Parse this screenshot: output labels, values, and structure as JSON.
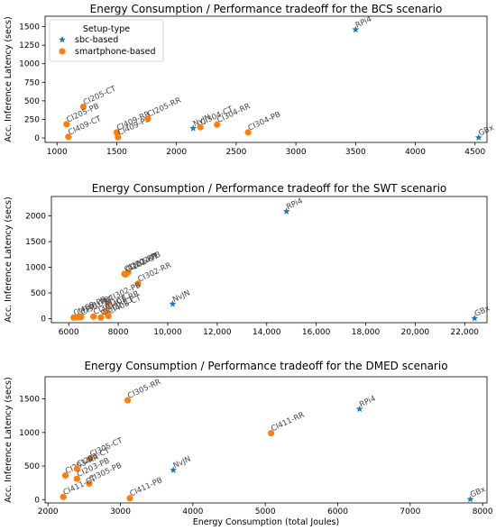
{
  "legend": {
    "title": "Setup-type",
    "items": [
      {
        "label": "sbc-based",
        "color": "#1f77b4",
        "marker": "star"
      },
      {
        "label": "smartphone-based",
        "color": "#ff7f0e",
        "marker": "circle"
      }
    ]
  },
  "chart_data": [
    {
      "type": "scatter",
      "title": "Energy Consumption / Performance tradeoff for the BCS scenario",
      "xlabel": "",
      "ylabel": "Acc. Inference Latency (secs)",
      "xlim": [
        900,
        4600
      ],
      "ylim": [
        -60,
        1640
      ],
      "xticks": [
        1000,
        1500,
        2000,
        2500,
        3000,
        3500,
        4000,
        4500
      ],
      "xtick_labels": [
        "1000",
        "1500",
        "2000",
        "2500",
        "3000",
        "3500",
        "4000",
        "4500"
      ],
      "yticks": [
        0,
        250,
        500,
        750,
        1000,
        1250,
        1500
      ],
      "ytick_labels": [
        "0",
        "250",
        "500",
        "750",
        "1000",
        "1250",
        "1500"
      ],
      "legend": true,
      "legend_position": "top-left",
      "points": [
        {
          "label": "RPi4",
          "x": 3500,
          "y": 1460,
          "type": "sbc"
        },
        {
          "label": "NvJN",
          "x": 2140,
          "y": 130,
          "type": "sbc"
        },
        {
          "label": "GBx",
          "x": 4530,
          "y": 5,
          "type": "sbc"
        },
        {
          "label": "CI205-CT",
          "x": 1220,
          "y": 420,
          "type": "smartphone"
        },
        {
          "label": "CI205-PB",
          "x": 1080,
          "y": 185,
          "type": "smartphone"
        },
        {
          "label": "CI409-CT",
          "x": 1095,
          "y": 15,
          "type": "smartphone"
        },
        {
          "label": "CI409-RR",
          "x": 1500,
          "y": 75,
          "type": "smartphone"
        },
        {
          "label": "CI409-PB",
          "x": 1510,
          "y": 10,
          "type": "smartphone"
        },
        {
          "label": "CI205-RR",
          "x": 1760,
          "y": 260,
          "type": "smartphone"
        },
        {
          "label": "CI304-CT",
          "x": 2200,
          "y": 145,
          "type": "smartphone"
        },
        {
          "label": "CI304-RR",
          "x": 2340,
          "y": 180,
          "type": "smartphone"
        },
        {
          "label": "CI304-PB",
          "x": 2600,
          "y": 75,
          "type": "smartphone"
        }
      ]
    },
    {
      "type": "scatter",
      "title": "Energy Consumption / Performance tradeoff for the SWT scenario",
      "xlabel": "",
      "ylabel": "Acc. Inference Latency (secs)",
      "xlim": [
        5300,
        22900
      ],
      "ylim": [
        -80,
        2380
      ],
      "xticks": [
        6000,
        8000,
        10000,
        12000,
        14000,
        16000,
        18000,
        20000,
        22000
      ],
      "xtick_labels": [
        "6000",
        "8000",
        "10,000",
        "12,000",
        "14,000",
        "16,000",
        "18,000",
        "20,000",
        "22,000"
      ],
      "yticks": [
        0,
        500,
        1000,
        1500,
        2000
      ],
      "ytick_labels": [
        "0",
        "500",
        "1000",
        "1500",
        "2000"
      ],
      "legend": false,
      "points": [
        {
          "label": "RPi4",
          "x": 14800,
          "y": 2090,
          "type": "sbc"
        },
        {
          "label": "NvJN",
          "x": 10200,
          "y": 285,
          "type": "sbc"
        },
        {
          "label": "GBx",
          "x": 22400,
          "y": 5,
          "type": "sbc"
        },
        {
          "label": "CI202-RR",
          "x": 8250,
          "y": 870,
          "type": "smartphone"
        },
        {
          "label": "CI202-PB",
          "x": 8400,
          "y": 900,
          "type": "smartphone"
        },
        {
          "label": "CI202-CT",
          "x": 8300,
          "y": 860,
          "type": "smartphone"
        },
        {
          "label": "CI302-RR",
          "x": 8800,
          "y": 680,
          "type": "smartphone"
        },
        {
          "label": "CI302-PB",
          "x": 7600,
          "y": 300,
          "type": "smartphone"
        },
        {
          "label": "CI408-RR",
          "x": 7500,
          "y": 130,
          "type": "smartphone"
        },
        {
          "label": "CI408-CT",
          "x": 7600,
          "y": 50,
          "type": "smartphone"
        },
        {
          "label": "CI408-PB",
          "x": 6200,
          "y": 20,
          "type": "smartphone"
        },
        {
          "label": "CI301-PB",
          "x": 6350,
          "y": 25,
          "type": "smartphone"
        },
        {
          "label": "CI301-RR",
          "x": 6500,
          "y": 30,
          "type": "smartphone"
        },
        {
          "label": "CI301-CT",
          "x": 7000,
          "y": 40,
          "type": "smartphone"
        },
        {
          "label": "CI302-CT",
          "x": 7300,
          "y": 20,
          "type": "smartphone"
        }
      ]
    },
    {
      "type": "scatter",
      "title": "Energy Consumption / Performance tradeoff for the DMED scenario",
      "xlabel": "Energy Consumption (total Joules)",
      "ylabel": "Acc. Inference Latency (secs)",
      "xlim": [
        1960,
        8060
      ],
      "ylim": [
        -50,
        1830
      ],
      "xticks": [
        2000,
        3000,
        4000,
        5000,
        6000,
        7000,
        8000
      ],
      "xtick_labels": [
        "2000",
        "3000",
        "4000",
        "5000",
        "6000",
        "7000",
        "8000"
      ],
      "yticks": [
        0,
        500,
        1000,
        1500
      ],
      "ytick_labels": [
        "0",
        "500",
        "1000",
        "1500"
      ],
      "legend": false,
      "points": [
        {
          "label": "RPi4",
          "x": 6300,
          "y": 1350,
          "type": "sbc"
        },
        {
          "label": "NvJN",
          "x": 3730,
          "y": 440,
          "type": "sbc"
        },
        {
          "label": "GBx",
          "x": 7830,
          "y": 5,
          "type": "sbc"
        },
        {
          "label": "CI305-RR",
          "x": 3100,
          "y": 1480,
          "type": "smartphone"
        },
        {
          "label": "CI411-RR",
          "x": 5080,
          "y": 990,
          "type": "smartphone"
        },
        {
          "label": "CI305-CT",
          "x": 2580,
          "y": 610,
          "type": "smartphone"
        },
        {
          "label": "CI203-RR",
          "x": 2240,
          "y": 360,
          "type": "smartphone"
        },
        {
          "label": "CI203-CT",
          "x": 2400,
          "y": 460,
          "type": "smartphone"
        },
        {
          "label": "CI203-PB",
          "x": 2400,
          "y": 310,
          "type": "smartphone"
        },
        {
          "label": "CI305-PB",
          "x": 2570,
          "y": 240,
          "type": "smartphone"
        },
        {
          "label": "CI411-CT",
          "x": 2210,
          "y": 40,
          "type": "smartphone"
        },
        {
          "label": "CI411-PB",
          "x": 3130,
          "y": 20,
          "type": "smartphone"
        }
      ]
    }
  ]
}
